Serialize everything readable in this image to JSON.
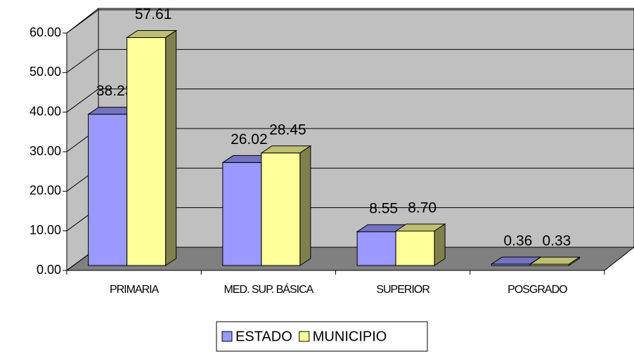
{
  "chart_data": {
    "type": "bar3d",
    "categories": [
      "PRIMARIA",
      "MED. SUP. BÁSICA",
      "SUPERIOR",
      "POSGRADO"
    ],
    "series": [
      {
        "name": "ESTADO",
        "color": "#9999ff",
        "values": [
          38.23,
          26.02,
          8.55,
          0.36
        ],
        "value_labels": [
          "38.23",
          "26.02",
          "8.55",
          "0.36"
        ]
      },
      {
        "name": "MUNICIPIO",
        "color": "#ffff99",
        "values": [
          57.61,
          28.45,
          8.7,
          0.33
        ],
        "value_labels": [
          "57.61",
          "28.45",
          "8.70",
          "0.33"
        ]
      }
    ],
    "ylim": [
      0,
      60
    ],
    "yticks": [
      {
        "value": 0,
        "label": "0.00"
      },
      {
        "value": 10,
        "label": "10.00"
      },
      {
        "value": 20,
        "label": "20.00"
      },
      {
        "value": 30,
        "label": "30.00"
      },
      {
        "value": 40,
        "label": "40.00"
      },
      {
        "value": 50,
        "label": "50.00"
      },
      {
        "value": 60,
        "label": "60.00"
      }
    ],
    "grid": true,
    "legend": "bottom"
  }
}
